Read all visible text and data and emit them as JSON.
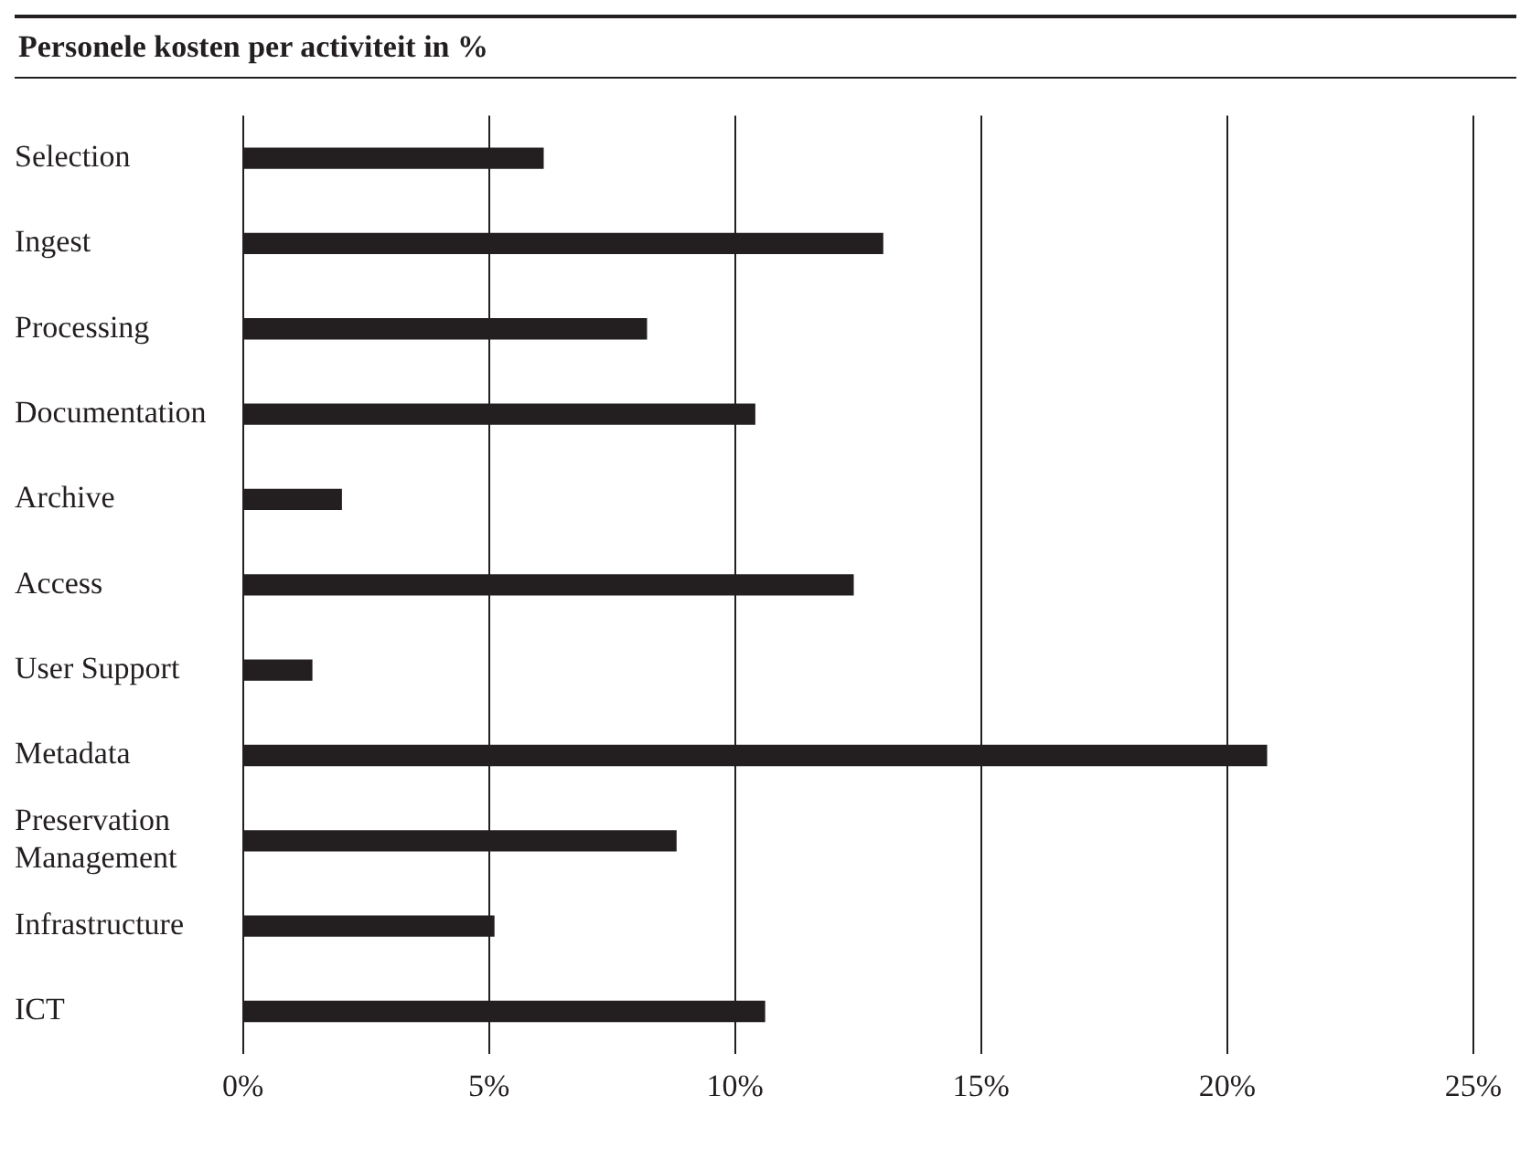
{
  "chart_data": {
    "type": "bar",
    "title": "Personele kosten per activiteit in %",
    "orientation": "horizontal",
    "categories": [
      "Selection",
      "Ingest",
      "Processing",
      "Documentation",
      "Archive",
      "Access",
      "User Support",
      "Metadata",
      "Preservation Management",
      "Infrastructure",
      "ICT"
    ],
    "values": [
      6.1,
      13.0,
      8.2,
      10.4,
      2.0,
      12.4,
      1.4,
      20.8,
      8.8,
      5.1,
      10.6
    ],
    "color": "#231f20",
    "xlim": [
      0,
      25
    ],
    "xticks": [
      {
        "value": 0,
        "label": "0%"
      },
      {
        "value": 5,
        "label": "5%"
      },
      {
        "value": 10,
        "label": "10%"
      },
      {
        "value": 15,
        "label": "15%"
      },
      {
        "value": 20,
        "label": "20%"
      },
      {
        "value": 25,
        "label": "25%"
      }
    ],
    "grid": "x",
    "legend": false
  }
}
